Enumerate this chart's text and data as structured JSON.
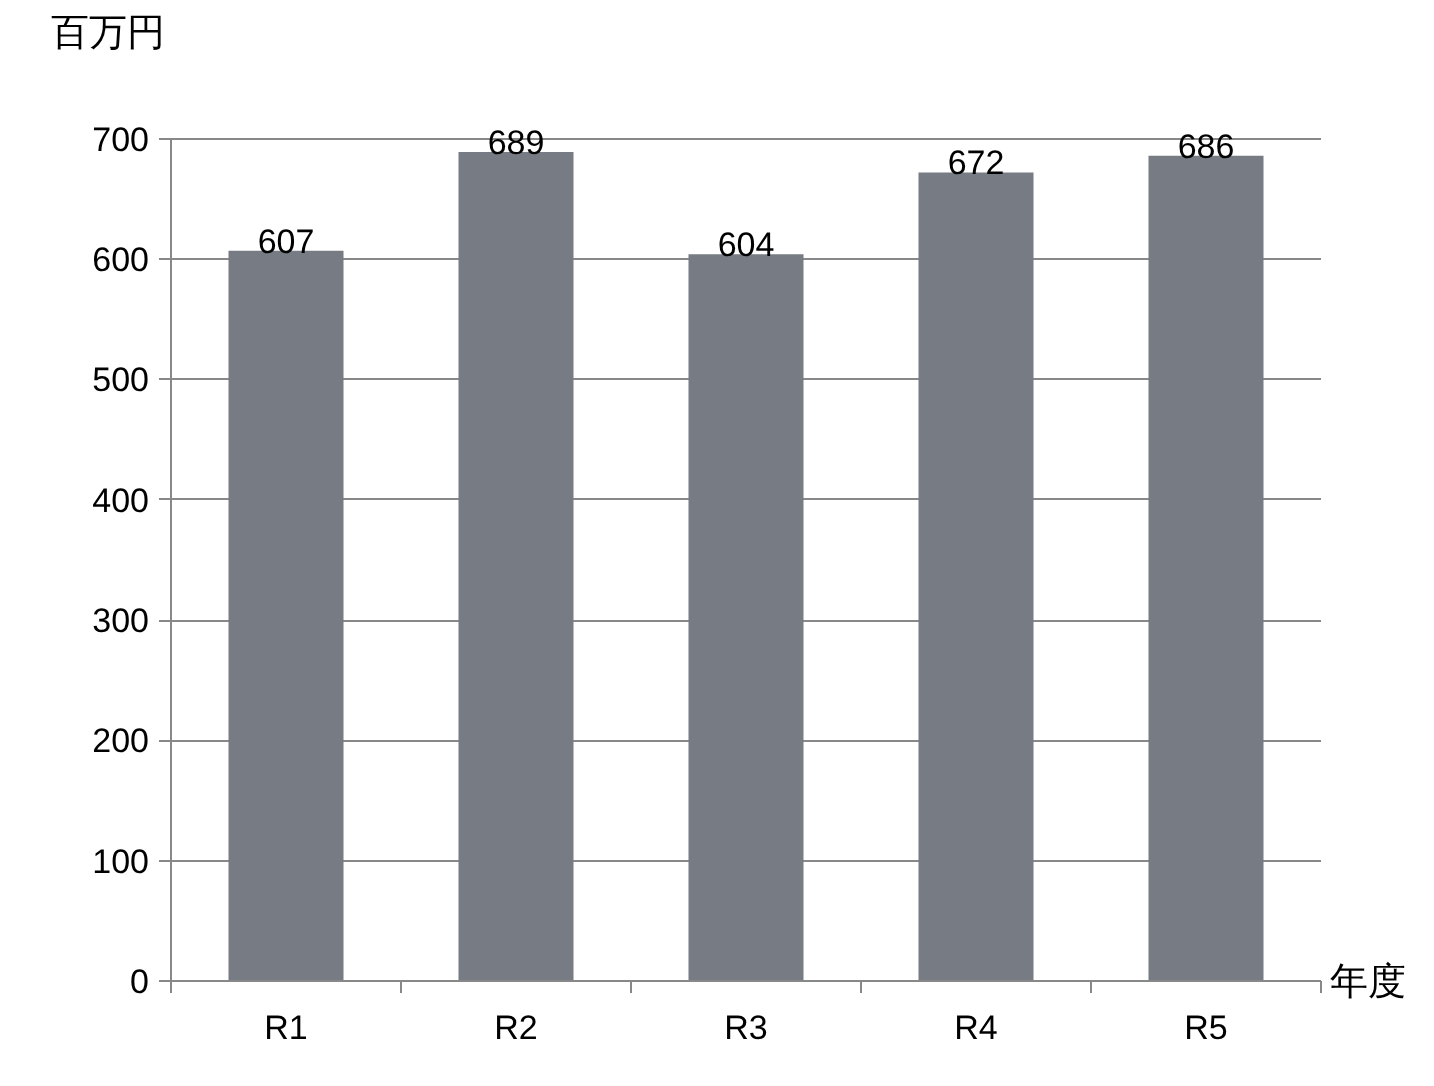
{
  "chart_data": {
    "type": "bar",
    "categories": [
      "R1",
      "R2",
      "R3",
      "R4",
      "R5"
    ],
    "values": [
      607,
      689,
      604,
      672,
      686
    ],
    "color": "#767b84",
    "xlabel": "年度",
    "ylabel": "百万円",
    "ylim": [
      0,
      700
    ],
    "yticks": [
      0,
      100,
      200,
      300,
      400,
      500,
      600,
      700
    ],
    "grid": "y",
    "data_labels": true
  }
}
